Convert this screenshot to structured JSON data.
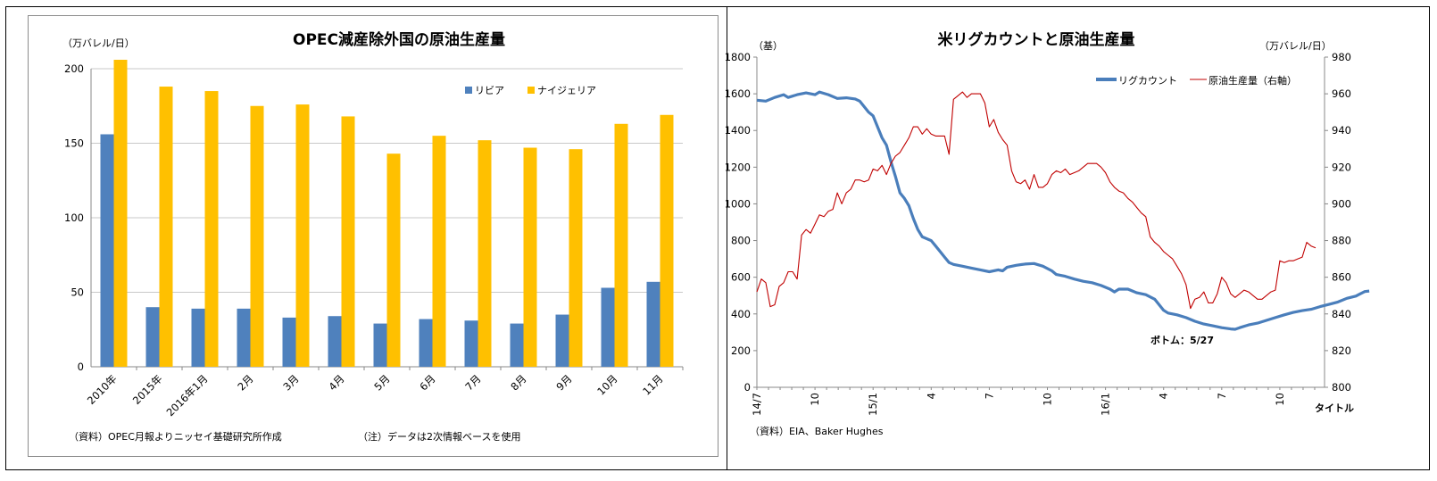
{
  "chart_data": [
    {
      "type": "bar",
      "title": "OPEC減産除外国の原油生産量",
      "unit_label": "（万バレル/日）",
      "categories": [
        "2010年",
        "2015年",
        "2016年1月",
        "2月",
        "3月",
        "4月",
        "5月",
        "6月",
        "7月",
        "8月",
        "9月",
        "10月",
        "11月"
      ],
      "series": [
        {
          "name": "リビア",
          "color": "#4f81bd",
          "values": [
            156,
            40,
            39,
            39,
            33,
            34,
            29,
            32,
            31,
            29,
            35,
            53,
            57
          ]
        },
        {
          "name": "ナイジェリア",
          "color": "#ffc000",
          "values": [
            206,
            188,
            185,
            175,
            176,
            168,
            143,
            155,
            152,
            147,
            146,
            163,
            169
          ]
        }
      ],
      "ylim": [
        0,
        200
      ],
      "yticks": [
        0,
        50,
        100,
        150,
        200
      ],
      "grid": true,
      "legend_position": "top-right",
      "source_note": "（資料）OPEC月報よりニッセイ基礎研究所作成",
      "footnote": "（注）データは2次情報ベースを使用"
    },
    {
      "type": "line",
      "title": "米リグカウントと原油生産量",
      "left_unit_label": "（基）",
      "right_unit_label": "（万バレル/日）",
      "xlabel": "タイトル",
      "x_tick_labels": [
        "14/7",
        "10",
        "15/1",
        "4",
        "7",
        "10",
        "16/1",
        "4",
        "7",
        "10"
      ],
      "x_tick_weeks": [
        0,
        13,
        26,
        39,
        52,
        65,
        78,
        91,
        104,
        117
      ],
      "x_total_weeks": 127,
      "ylim_left": [
        0,
        1800
      ],
      "yticks_left": [
        0,
        200,
        400,
        600,
        800,
        1000,
        1200,
        1400,
        1600,
        1800
      ],
      "ylim_right": [
        800,
        980
      ],
      "yticks_right": [
        800,
        820,
        840,
        860,
        880,
        900,
        920,
        940,
        960,
        980
      ],
      "legend_position": "top",
      "series": [
        {
          "name": "リグカウント",
          "axis": "left",
          "color": "#4a7ebb",
          "points": [
            [
              0,
              1565
            ],
            [
              2,
              1560
            ],
            [
              4,
              1580
            ],
            [
              6,
              1595
            ],
            [
              7,
              1580
            ],
            [
              9,
              1595
            ],
            [
              11,
              1605
            ],
            [
              13,
              1595
            ],
            [
              14,
              1610
            ],
            [
              16,
              1595
            ],
            [
              18,
              1575
            ],
            [
              20,
              1578
            ],
            [
              22,
              1572
            ],
            [
              23,
              1560
            ],
            [
              24,
              1530
            ],
            [
              25,
              1500
            ],
            [
              26,
              1480
            ],
            [
              27,
              1420
            ],
            [
              28,
              1360
            ],
            [
              29,
              1320
            ],
            [
              30,
              1230
            ],
            [
              31,
              1150
            ],
            [
              32,
              1060
            ],
            [
              33,
              1030
            ],
            [
              34,
              990
            ],
            [
              35,
              920
            ],
            [
              36,
              860
            ],
            [
              37,
              820
            ],
            [
              38,
              810
            ],
            [
              39,
              800
            ],
            [
              40,
              770
            ],
            [
              41,
              740
            ],
            [
              42,
              710
            ],
            [
              43,
              680
            ],
            [
              44,
              670
            ],
            [
              46,
              660
            ],
            [
              48,
              650
            ],
            [
              50,
              640
            ],
            [
              52,
              630
            ],
            [
              54,
              640
            ],
            [
              55,
              635
            ],
            [
              56,
              655
            ],
            [
              58,
              665
            ],
            [
              60,
              672
            ],
            [
              62,
              675
            ],
            [
              64,
              660
            ],
            [
              66,
              635
            ],
            [
              67,
              615
            ],
            [
              69,
              605
            ],
            [
              71,
              590
            ],
            [
              73,
              578
            ],
            [
              75,
              570
            ],
            [
              77,
              555
            ],
            [
              79,
              535
            ],
            [
              80,
              520
            ],
            [
              81,
              535
            ],
            [
              83,
              535
            ],
            [
              85,
              515
            ],
            [
              87,
              505
            ],
            [
              89,
              480
            ],
            [
              90,
              450
            ],
            [
              91,
              420
            ],
            [
              92,
              405
            ],
            [
              94,
              395
            ],
            [
              96,
              380
            ],
            [
              98,
              360
            ],
            [
              100,
              345
            ],
            [
              102,
              335
            ],
            [
              104,
              325
            ],
            [
              106,
              318
            ],
            [
              107,
              316
            ],
            [
              108,
              325
            ],
            [
              110,
              340
            ],
            [
              112,
              350
            ],
            [
              114,
              365
            ],
            [
              116,
              380
            ],
            [
              118,
              395
            ],
            [
              120,
              408
            ],
            [
              122,
              418
            ],
            [
              124,
              425
            ],
            [
              126,
              440
            ],
            [
              128,
              452
            ],
            [
              130,
              465
            ],
            [
              132,
              485
            ],
            [
              134,
              497
            ],
            [
              135,
              510
            ],
            [
              136,
              522
            ],
            [
              137,
              525
            ]
          ]
        },
        {
          "name": "原油生産量（右軸）",
          "axis": "right",
          "color": "#c00000",
          "points": [
            [
              0,
              852
            ],
            [
              1,
              859
            ],
            [
              2,
              857
            ],
            [
              3,
              844
            ],
            [
              4,
              845
            ],
            [
              5,
              855
            ],
            [
              6,
              857
            ],
            [
              7,
              863
            ],
            [
              8,
              863
            ],
            [
              9,
              859
            ],
            [
              10,
              883
            ],
            [
              11,
              886
            ],
            [
              12,
              884
            ],
            [
              13,
              889
            ],
            [
              14,
              894
            ],
            [
              15,
              893
            ],
            [
              16,
              896
            ],
            [
              17,
              897
            ],
            [
              18,
              906
            ],
            [
              19,
              900
            ],
            [
              20,
              906
            ],
            [
              21,
              908
            ],
            [
              22,
              913
            ],
            [
              23,
              913
            ],
            [
              24,
              912
            ],
            [
              25,
              913
            ],
            [
              26,
              919
            ],
            [
              27,
              918
            ],
            [
              28,
              921
            ],
            [
              29,
              916
            ],
            [
              30,
              922
            ],
            [
              31,
              926
            ],
            [
              32,
              928
            ],
            [
              33,
              932
            ],
            [
              34,
              936
            ],
            [
              35,
              942
            ],
            [
              36,
              942
            ],
            [
              37,
              938
            ],
            [
              38,
              941
            ],
            [
              39,
              938
            ],
            [
              40,
              937
            ],
            [
              41,
              937
            ],
            [
              42,
              937
            ],
            [
              43,
              927
            ],
            [
              44,
              957
            ],
            [
              45,
              959
            ],
            [
              46,
              961
            ],
            [
              47,
              958
            ],
            [
              48,
              960
            ],
            [
              49,
              960
            ],
            [
              50,
              960
            ],
            [
              51,
              955
            ],
            [
              52,
              942
            ],
            [
              53,
              946
            ],
            [
              54,
              939
            ],
            [
              55,
              935
            ],
            [
              56,
              932
            ],
            [
              57,
              918
            ],
            [
              58,
              912
            ],
            [
              59,
              911
            ],
            [
              60,
              913
            ],
            [
              61,
              908
            ],
            [
              62,
              916
            ],
            [
              63,
              909
            ],
            [
              64,
              909
            ],
            [
              65,
              911
            ],
            [
              66,
              916
            ],
            [
              67,
              918
            ],
            [
              68,
              917
            ],
            [
              69,
              919
            ],
            [
              70,
              916
            ],
            [
              71,
              917
            ],
            [
              72,
              918
            ],
            [
              73,
              920
            ],
            [
              74,
              922
            ],
            [
              75,
              922
            ],
            [
              76,
              922
            ],
            [
              77,
              920
            ],
            [
              78,
              917
            ],
            [
              79,
              912
            ],
            [
              80,
              909
            ],
            [
              81,
              907
            ],
            [
              82,
              906
            ],
            [
              83,
              903
            ],
            [
              84,
              901
            ],
            [
              85,
              898
            ],
            [
              86,
              895
            ],
            [
              87,
              893
            ],
            [
              88,
              882
            ],
            [
              89,
              879
            ],
            [
              90,
              877
            ],
            [
              91,
              874
            ],
            [
              92,
              872
            ],
            [
              93,
              870
            ],
            [
              94,
              866
            ],
            [
              95,
              862
            ],
            [
              96,
              856
            ],
            [
              97,
              843
            ],
            [
              98,
              848
            ],
            [
              99,
              849
            ],
            [
              100,
              852
            ],
            [
              101,
              846
            ],
            [
              102,
              846
            ],
            [
              103,
              851
            ],
            [
              104,
              860
            ],
            [
              105,
              857
            ],
            [
              106,
              851
            ],
            [
              107,
              849
            ],
            [
              108,
              851
            ],
            [
              109,
              853
            ],
            [
              110,
              852
            ],
            [
              111,
              850
            ],
            [
              112,
              848
            ],
            [
              113,
              848
            ],
            [
              114,
              850
            ],
            [
              115,
              852
            ],
            [
              116,
              853
            ],
            [
              117,
              869
            ],
            [
              118,
              868
            ],
            [
              119,
              869
            ],
            [
              120,
              869
            ],
            [
              121,
              870
            ],
            [
              122,
              871
            ],
            [
              123,
              879
            ],
            [
              124,
              877
            ],
            [
              125,
              876
            ]
          ]
        }
      ],
      "annotations": [
        "ボトム：5/27"
      ],
      "source_note": "（資料）EIA、Baker Hughes"
    }
  ]
}
